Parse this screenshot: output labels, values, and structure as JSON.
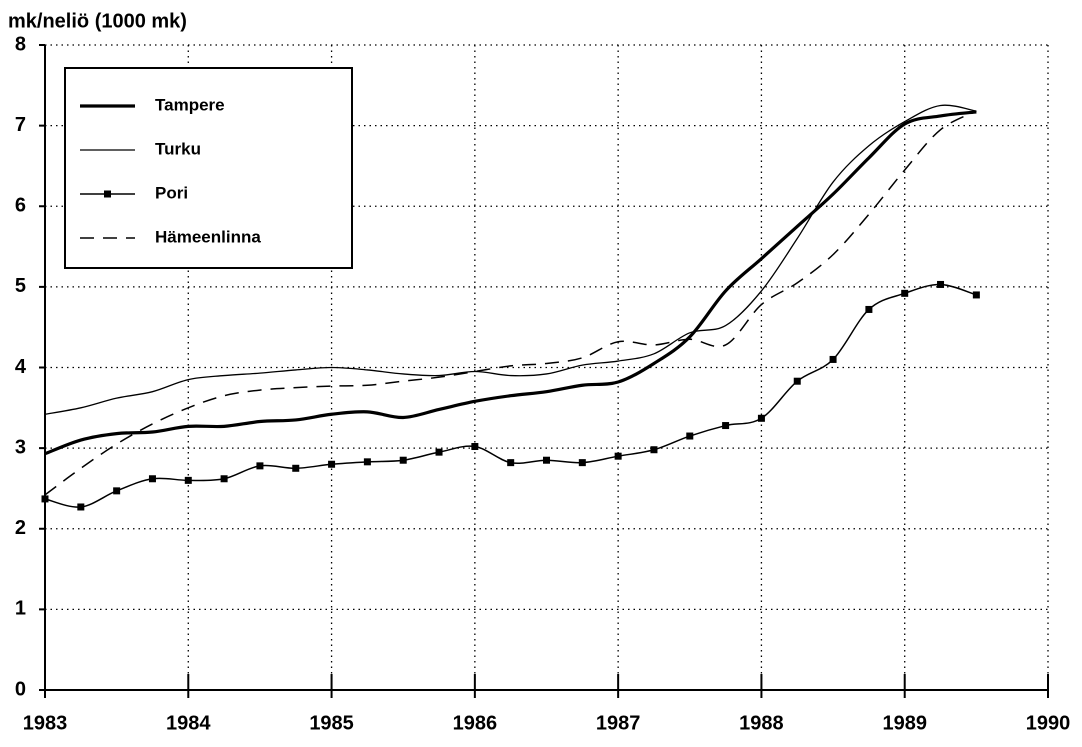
{
  "chart_data": {
    "type": "line",
    "y_label": "mk/neliö (1000 mk)",
    "x": [
      1983,
      1983.25,
      1983.5,
      1983.75,
      1984,
      1984.25,
      1984.5,
      1984.75,
      1985,
      1985.25,
      1985.5,
      1985.75,
      1986,
      1986.25,
      1986.5,
      1986.75,
      1987,
      1987.25,
      1987.5,
      1987.75,
      1988,
      1988.25,
      1988.5,
      1988.75,
      1989,
      1989.25,
      1989.5
    ],
    "series": [
      {
        "name": "Tampere",
        "color": "#000000",
        "line_width": 3.2,
        "dash": "solid",
        "marker": "none",
        "values": [
          2.93,
          3.1,
          3.18,
          3.2,
          3.27,
          3.27,
          3.33,
          3.35,
          3.42,
          3.45,
          3.38,
          3.48,
          3.58,
          3.65,
          3.7,
          3.78,
          3.82,
          4.05,
          4.38,
          4.95,
          5.35,
          5.75,
          6.15,
          6.6,
          7.02,
          7.12,
          7.17
        ]
      },
      {
        "name": "Turku",
        "color": "#000000",
        "line_width": 1.3,
        "dash": "solid",
        "marker": "none",
        "values": [
          3.42,
          3.5,
          3.62,
          3.7,
          3.85,
          3.9,
          3.93,
          3.97,
          4.0,
          3.97,
          3.92,
          3.9,
          3.95,
          3.9,
          3.92,
          4.03,
          4.08,
          4.17,
          4.43,
          4.52,
          4.95,
          5.6,
          6.3,
          6.75,
          7.05,
          7.25,
          7.18
        ]
      },
      {
        "name": "Pori",
        "color": "#000000",
        "line_width": 1.5,
        "dash": "solid",
        "marker": "square",
        "values": [
          2.37,
          2.27,
          2.47,
          2.62,
          2.6,
          2.62,
          2.78,
          2.75,
          2.8,
          2.83,
          2.85,
          2.95,
          3.02,
          2.82,
          2.85,
          2.82,
          2.9,
          2.98,
          3.15,
          3.28,
          3.37,
          3.83,
          4.1,
          4.72,
          4.92,
          5.03,
          4.9
        ]
      },
      {
        "name": "Hämeenlinna",
        "color": "#000000",
        "line_width": 1.5,
        "dash": "dashed",
        "marker": "none",
        "values": [
          2.42,
          2.75,
          3.05,
          3.3,
          3.5,
          3.65,
          3.72,
          3.75,
          3.77,
          3.78,
          3.83,
          3.88,
          3.95,
          4.02,
          4.05,
          4.12,
          4.32,
          4.28,
          4.35,
          4.28,
          4.78,
          5.05,
          5.4,
          5.9,
          6.45,
          6.95,
          7.18
        ]
      }
    ],
    "xlim": [
      1983,
      1990
    ],
    "xticks": [
      1983,
      1984,
      1985,
      1986,
      1987,
      1988,
      1989,
      1990
    ],
    "ylim": [
      0,
      8
    ],
    "yticks": [
      0,
      1,
      2,
      3,
      4,
      5,
      6,
      7,
      8
    ],
    "grid": true,
    "legend": "upper left"
  }
}
